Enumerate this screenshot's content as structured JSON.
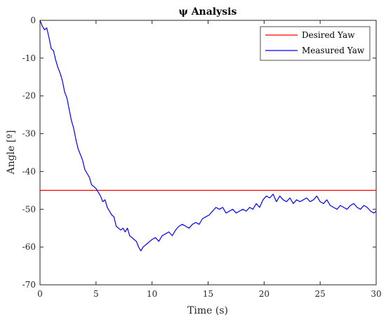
{
  "chart_data": {
    "type": "line",
    "title": "ψ Analysis",
    "xlabel": "Time (s)",
    "ylabel": "Angle [º]",
    "xlim": [
      0,
      30
    ],
    "ylim": [
      -70,
      0
    ],
    "xticks": [
      0,
      5,
      10,
      15,
      20,
      25,
      30
    ],
    "yticks": [
      0,
      -10,
      -20,
      -30,
      -40,
      -50,
      -60,
      -70
    ],
    "grid": false,
    "legend_position": "top-right",
    "series": [
      {
        "name": "Desired Yaw",
        "color": "#ff0000",
        "x": [
          0,
          30
        ],
        "y": [
          -45,
          -45
        ]
      },
      {
        "name": "Measured Yaw",
        "color": "#0000ff",
        "x": [
          0,
          0.2,
          0.4,
          0.6,
          0.8,
          1.0,
          1.2,
          1.4,
          1.6,
          1.8,
          2.0,
          2.2,
          2.4,
          2.6,
          2.8,
          3.0,
          3.2,
          3.4,
          3.6,
          3.8,
          4.0,
          4.2,
          4.4,
          4.6,
          4.8,
          5.0,
          5.2,
          5.4,
          5.6,
          5.8,
          6.0,
          6.2,
          6.4,
          6.6,
          6.8,
          7.0,
          7.2,
          7.4,
          7.6,
          7.8,
          8.0,
          8.2,
          8.4,
          8.6,
          8.8,
          9.0,
          9.2,
          9.4,
          9.6,
          9.8,
          10.0,
          10.3,
          10.6,
          10.9,
          11.2,
          11.5,
          11.8,
          12.1,
          12.4,
          12.7,
          13.0,
          13.3,
          13.6,
          13.9,
          14.2,
          14.5,
          14.8,
          15.1,
          15.4,
          15.7,
          16.0,
          16.3,
          16.6,
          16.9,
          17.2,
          17.5,
          17.8,
          18.1,
          18.4,
          18.7,
          19.0,
          19.3,
          19.6,
          19.9,
          20.2,
          20.5,
          20.8,
          21.1,
          21.4,
          21.7,
          22.0,
          22.3,
          22.6,
          22.9,
          23.2,
          23.5,
          23.8,
          24.1,
          24.4,
          24.7,
          25.0,
          25.3,
          25.6,
          25.9,
          26.2,
          26.5,
          26.8,
          27.1,
          27.4,
          27.7,
          28.0,
          28.3,
          28.6,
          28.9,
          29.2,
          29.5,
          29.8,
          30.0
        ],
        "y": [
          0,
          -1.5,
          -2.5,
          -2.0,
          -4.5,
          -7.5,
          -8.0,
          -10.5,
          -12.5,
          -14.0,
          -16.0,
          -19.0,
          -20.5,
          -23.5,
          -26.5,
          -28.5,
          -31.5,
          -34.0,
          -35.5,
          -37.0,
          -39.5,
          -40.5,
          -41.5,
          -43.5,
          -44.0,
          -44.5,
          -45.5,
          -46.5,
          -48.0,
          -47.5,
          -49.5,
          -50.5,
          -51.5,
          -52.0,
          -54.5,
          -55.0,
          -55.5,
          -55.0,
          -56.0,
          -55.0,
          -57.0,
          -57.5,
          -58.0,
          -58.5,
          -60.0,
          -61.0,
          -60.0,
          -59.5,
          -59.0,
          -58.5,
          -58.0,
          -57.5,
          -58.5,
          -57.0,
          -56.5,
          -56.0,
          -57.0,
          -55.5,
          -54.5,
          -54.0,
          -54.5,
          -55.0,
          -54.0,
          -53.5,
          -54.0,
          -52.5,
          -52.0,
          -51.5,
          -50.5,
          -49.5,
          -50.0,
          -49.5,
          -51.0,
          -50.5,
          -50.0,
          -51.0,
          -50.5,
          -50.0,
          -50.5,
          -49.5,
          -50.0,
          -48.5,
          -49.5,
          -47.5,
          -46.5,
          -47.0,
          -46.0,
          -48.0,
          -46.5,
          -47.5,
          -48.0,
          -47.0,
          -48.5,
          -47.5,
          -48.0,
          -47.5,
          -47.0,
          -48.0,
          -47.5,
          -46.5,
          -48.0,
          -48.5,
          -47.5,
          -49.0,
          -49.5,
          -50.0,
          -49.0,
          -49.5,
          -50.0,
          -49.0,
          -48.5,
          -49.5,
          -50.0,
          -49.0,
          -49.5,
          -50.5,
          -51.0,
          -50.5
        ]
      }
    ]
  }
}
